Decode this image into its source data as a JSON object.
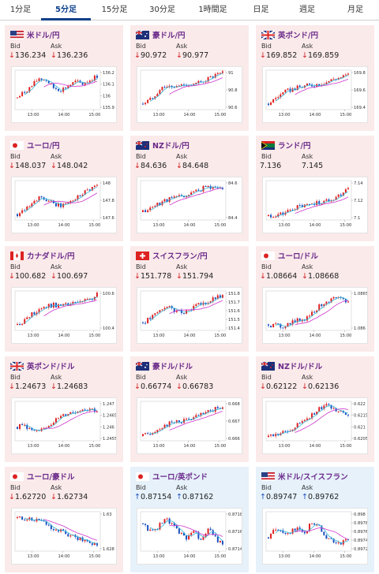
{
  "tabs": [
    {
      "label": "1分足",
      "active": false
    },
    {
      "label": "5分足",
      "active": true
    },
    {
      "label": "15分足",
      "active": false
    },
    {
      "label": "30分足",
      "active": false
    },
    {
      "label": "1時間足",
      "active": false
    },
    {
      "label": "日足",
      "active": false
    },
    {
      "label": "週足",
      "active": false
    },
    {
      "label": "月足",
      "active": false
    }
  ],
  "bid_label": "Bid",
  "ask_label": "Ask",
  "x_ticks": [
    "13:00",
    "14:00",
    "15:00"
  ],
  "colors": {
    "up_candle": "#e02020",
    "down_candle": "#1a4fbf",
    "ma_short": "#33b8d8",
    "ma_long": "#cc33cc",
    "down_bg": "#fbeaea",
    "up_bg": "#e6f1fa"
  },
  "cards": [
    {
      "pair": "米ドル/円",
      "flag": "us",
      "dir": "down",
      "arrow": "↓",
      "bid": "136.234",
      "ask": "136.236",
      "yticks": [
        "136.2",
        "136.1",
        "136",
        "135.9"
      ]
    },
    {
      "pair": "豪ドル/円",
      "flag": "au",
      "dir": "down",
      "arrow": "↓",
      "bid": "90.972",
      "ask": "90.977",
      "yticks": [
        "91",
        "90.8",
        "90.6"
      ]
    },
    {
      "pair": "英ポンド/円",
      "flag": "gb",
      "dir": "down",
      "arrow": "↓",
      "bid": "169.852",
      "ask": "169.859",
      "yticks": [
        "169.8",
        "169.6",
        "169.4"
      ]
    },
    {
      "pair": "ユーロ/円",
      "flag": "eu",
      "dir": "down",
      "arrow": "↓",
      "bid": "148.037",
      "ask": "148.042",
      "yticks": [
        "148",
        "147.8",
        "147.6"
      ]
    },
    {
      "pair": "NZドル/円",
      "flag": "nz",
      "dir": "down",
      "arrow": "↓",
      "bid": "84.636",
      "ask": "84.648",
      "yticks": [
        "84.6",
        "84.4"
      ]
    },
    {
      "pair": "ランド/円",
      "flag": "za",
      "dir": "down",
      "arrow": "",
      "bid": "7.136",
      "ask": "7.145",
      "yticks": [
        "7.14",
        "7.12",
        "7.1"
      ]
    },
    {
      "pair": "カナダドル/円",
      "flag": "ca",
      "dir": "down",
      "arrow": "↓",
      "bid": "100.682",
      "ask": "100.697",
      "yticks": [
        "100.6",
        "100.4"
      ]
    },
    {
      "pair": "スイスフラン/円",
      "flag": "ch",
      "dir": "down",
      "arrow": "↓",
      "bid": "151.778",
      "ask": "151.794",
      "yticks": [
        "151.8",
        "151.7",
        "151.6",
        "151.5",
        "151.4"
      ]
    },
    {
      "pair": "ユーロ/ドル",
      "flag": "eu",
      "dir": "down",
      "arrow": "↓",
      "bid": "1.08664",
      "ask": "1.08668",
      "yticks": [
        "1.0865",
        "1.086"
      ]
    },
    {
      "pair": "英ポンド/ドル",
      "flag": "gb",
      "dir": "down",
      "arrow": "↓",
      "bid": "1.24673",
      "ask": "1.24683",
      "yticks": [
        "1.247",
        "1.2465",
        "1.246",
        "1.2455"
      ]
    },
    {
      "pair": "豪ドル/ドル",
      "flag": "au",
      "dir": "down",
      "arrow": "↓",
      "bid": "0.66774",
      "ask": "0.66783",
      "yticks": [
        "0.668",
        "0.667",
        "0.666"
      ]
    },
    {
      "pair": "NZドル/ドル",
      "flag": "nz",
      "dir": "down",
      "arrow": "↓",
      "bid": "0.62122",
      "ask": "0.62136",
      "yticks": [
        "0.622",
        "0.6215",
        "0.621",
        "0.6205"
      ]
    },
    {
      "pair": "ユーロ/豪ドル",
      "flag": "eu",
      "dir": "down",
      "arrow": "↓",
      "bid": "1.62720",
      "ask": "1.62734",
      "yticks": [
        "1.63",
        "1.628"
      ]
    },
    {
      "pair": "ユーロ/英ポンド",
      "flag": "eu",
      "dir": "up",
      "arrow": "↑",
      "bid": "0.87154",
      "ask": "0.87162",
      "yticks": [
        "0.8718",
        "0.8716",
        "0.8714"
      ]
    },
    {
      "pair": "米ドル/スイスフラン",
      "flag": "us",
      "dir": "up",
      "arrow": "↑",
      "bid": "0.89747",
      "ask": "0.89762",
      "yticks": [
        "0.898",
        "0.8978",
        "0.8976",
        "0.8974",
        "0.8972"
      ]
    }
  ]
}
